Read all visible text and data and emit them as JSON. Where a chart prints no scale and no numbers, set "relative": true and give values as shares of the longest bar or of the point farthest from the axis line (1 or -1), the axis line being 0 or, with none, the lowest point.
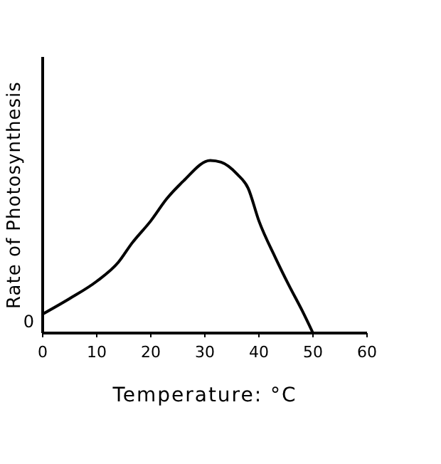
{
  "chart_data": {
    "type": "line",
    "xlabel": "Temperature: °C",
    "ylabel": "Rate of Photosynthesis",
    "relative": true,
    "xlim": [
      0,
      60
    ],
    "xticks": [
      0,
      10,
      20,
      30,
      40,
      50,
      60
    ],
    "color": "#000000",
    "annotations": [
      "0"
    ],
    "x": [
      0,
      5,
      10,
      14,
      16.5,
      20,
      23,
      26,
      31,
      33,
      36,
      38,
      40,
      43,
      45.5,
      48,
      50
    ],
    "values": [
      0.11,
      0.2,
      0.3,
      0.41,
      0.52,
      0.65,
      0.78,
      0.88,
      1,
      0.99,
      0.92,
      0.84,
      0.65,
      0.44,
      0.28,
      0.13,
      0
    ]
  }
}
